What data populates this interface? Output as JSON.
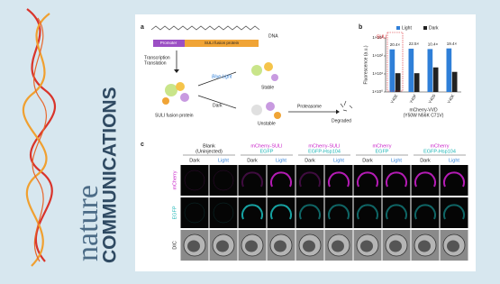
{
  "logo": {
    "word_top": "nature",
    "word_bottom": "COMMUNICATIONS"
  },
  "panel_a": {
    "label": "a",
    "dna": "DNA",
    "promoter": "Promoter",
    "gene": "SULI fusion protein",
    "step1": "Transcription",
    "step2": "Translation",
    "light": "Blue Light",
    "stable": "Stable",
    "dark": "Dark",
    "unstable": "Unstable",
    "protein": "SULI fusion protein",
    "proteasome": "Proteasome",
    "degraded": "Degraded"
  },
  "panel_b": {
    "label": "b",
    "chart_data": {
      "type": "bar",
      "y_label": "Fluorescence (a.u.)",
      "x_label": [
        "mCherry-VVD",
        "(Y50W N56K C71V)"
      ],
      "annotation": "SULI",
      "categories": [
        "Y40E",
        "Y40F",
        "Y40S",
        "Y40K"
      ],
      "series": [
        {
          "name": "Light",
          "color": "#2f7fd8",
          "values": [
            230,
            250,
            240,
            260
          ]
        },
        {
          "name": "Dark",
          "color": "#222222",
          "values": [
            11,
            11,
            23,
            13
          ]
        }
      ],
      "fold_labels": [
        "20.4×",
        "22.5×",
        "10.4×",
        "19.4×"
      ],
      "ylim": [
        1,
        1000
      ],
      "log_scale": true,
      "yticks": [
        {
          "value": 1,
          "label": "1×10⁰"
        },
        {
          "value": 10,
          "label": "1×10¹"
        },
        {
          "value": 100,
          "label": "1×10²"
        },
        {
          "value": 1000,
          "label": "1×10³"
        }
      ],
      "legend": "top"
    }
  },
  "panel_c": {
    "label": "c",
    "columns": [
      {
        "lines": [
          "Blank",
          "(Uninjected)"
        ]
      },
      {
        "lines": [
          "mCherry-SULI",
          "EGFP"
        ]
      },
      {
        "lines": [
          "mCherry-SULI",
          "EGFP-Hsp104"
        ]
      },
      {
        "lines": [
          "mCherry",
          "EGFP"
        ]
      },
      {
        "lines": [
          "mCherry",
          "EGFP-Hsp104"
        ]
      }
    ],
    "conditions": [
      "Dark",
      "Light"
    ],
    "rows": [
      "mCherry",
      "EGFP",
      "DIC"
    ]
  }
}
